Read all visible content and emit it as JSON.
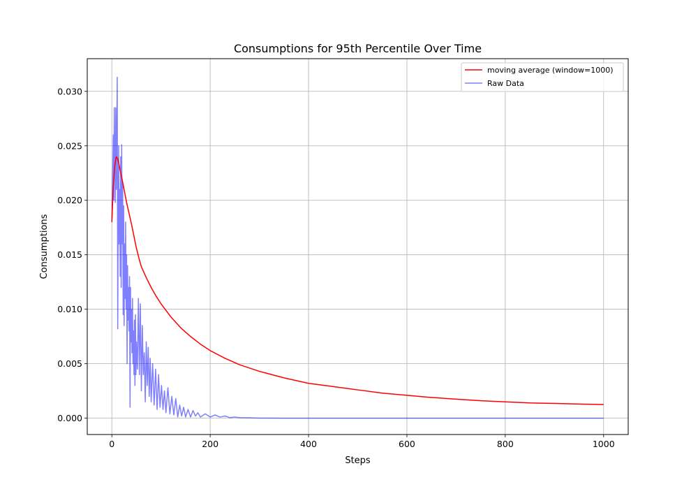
{
  "chart_data": {
    "type": "line",
    "title": "Consumptions for 95th Percentile Over Time",
    "xlabel": "Steps",
    "ylabel": "Consumptions",
    "xlim": [
      -50,
      1050
    ],
    "ylim": [
      -0.0015,
      0.033
    ],
    "xticks": [
      0,
      200,
      400,
      600,
      800,
      1000
    ],
    "xtick_labels": [
      "0",
      "200",
      "400",
      "600",
      "800",
      "1000"
    ],
    "yticks": [
      0,
      0.005,
      0.01,
      0.015,
      0.02,
      0.025,
      0.03
    ],
    "ytick_labels": [
      "0.000",
      "0.005",
      "0.010",
      "0.015",
      "0.020",
      "0.025",
      "0.030"
    ],
    "grid": true,
    "legend_position": "top-right",
    "series": [
      {
        "name": "moving average (window=1000)",
        "color": "#ff0000",
        "opacity": 1,
        "x": [
          0,
          3,
          6,
          9,
          12,
          15,
          18,
          21,
          24,
          27,
          30,
          35,
          40,
          45,
          50,
          55,
          60,
          70,
          80,
          90,
          100,
          120,
          140,
          160,
          180,
          200,
          230,
          260,
          300,
          350,
          400,
          450,
          500,
          550,
          600,
          650,
          700,
          750,
          800,
          850,
          900,
          950,
          1000
        ],
        "y": [
          0.018,
          0.0213,
          0.0232,
          0.024,
          0.0238,
          0.0232,
          0.0225,
          0.0219,
          0.0212,
          0.0205,
          0.0198,
          0.0188,
          0.0178,
          0.0167,
          0.0156,
          0.0147,
          0.0139,
          0.0129,
          0.012,
          0.0112,
          0.0105,
          0.0093,
          0.0083,
          0.0075,
          0.0068,
          0.0062,
          0.0055,
          0.0049,
          0.0043,
          0.0037,
          0.0032,
          0.0029,
          0.0026,
          0.0023,
          0.0021,
          0.0019,
          0.00175,
          0.0016,
          0.0015,
          0.0014,
          0.00135,
          0.0013,
          0.00125
        ]
      },
      {
        "name": "Raw Data",
        "color": "#0000ff",
        "opacity": 0.5,
        "x": [
          0,
          2,
          3,
          4,
          5,
          6,
          7,
          8,
          9,
          10,
          11,
          12,
          13,
          14,
          15,
          16,
          17,
          18,
          19,
          20,
          21,
          22,
          23,
          24,
          25,
          26,
          27,
          28,
          29,
          30,
          31,
          32,
          33,
          34,
          35,
          36,
          37,
          38,
          39,
          40,
          41,
          42,
          43,
          44,
          45,
          46,
          47,
          48,
          49,
          50,
          52,
          54,
          56,
          58,
          60,
          62,
          64,
          66,
          68,
          70,
          72,
          74,
          76,
          78,
          80,
          83,
          86,
          89,
          92,
          95,
          98,
          101,
          104,
          107,
          110,
          114,
          118,
          122,
          126,
          130,
          134,
          138,
          142,
          146,
          150,
          155,
          160,
          165,
          170,
          175,
          180,
          190,
          200,
          210,
          220,
          230,
          240,
          250,
          260,
          280,
          300,
          350,
          400,
          500,
          600,
          700,
          800,
          900,
          1000
        ],
        "y": [
          0.018,
          0.023,
          0.026,
          0.02,
          0.0285,
          0.024,
          0.0198,
          0.0285,
          0.021,
          0.026,
          0.0313,
          0.0082,
          0.0195,
          0.025,
          0.016,
          0.021,
          0.013,
          0.024,
          0.012,
          0.0251,
          0.016,
          0.0216,
          0.0095,
          0.0195,
          0.0085,
          0.016,
          0.011,
          0.018,
          0.01,
          0.015,
          0.005,
          0.014,
          0.009,
          0.012,
          0.008,
          0.013,
          0.001,
          0.012,
          0.007,
          0.01,
          0.006,
          0.011,
          0.005,
          0.008,
          0.004,
          0.009,
          0.003,
          0.0095,
          0.004,
          0.007,
          0.0045,
          0.011,
          0.004,
          0.0105,
          0.0025,
          0.0085,
          0.004,
          0.006,
          0.0015,
          0.007,
          0.003,
          0.0065,
          0.002,
          0.0055,
          0.0015,
          0.005,
          0.0012,
          0.0045,
          0.0008,
          0.004,
          0.001,
          0.003,
          0.0008,
          0.0025,
          0.0005,
          0.0028,
          0.0004,
          0.002,
          0.0003,
          0.0018,
          0.0001,
          0.0012,
          0.0002,
          0.001,
          0.0001,
          0.0008,
          0.0001,
          0.0007,
          0.0002,
          0.0005,
          0.0001,
          0.0004,
          0.0001,
          0.0003,
          0.0001,
          0.0002,
          5e-05,
          0.0001,
          5e-05,
          3e-05,
          1e-05,
          0.0,
          0.0,
          0.0,
          0.0,
          0.0,
          0.0,
          0.0,
          0.0
        ]
      }
    ]
  }
}
